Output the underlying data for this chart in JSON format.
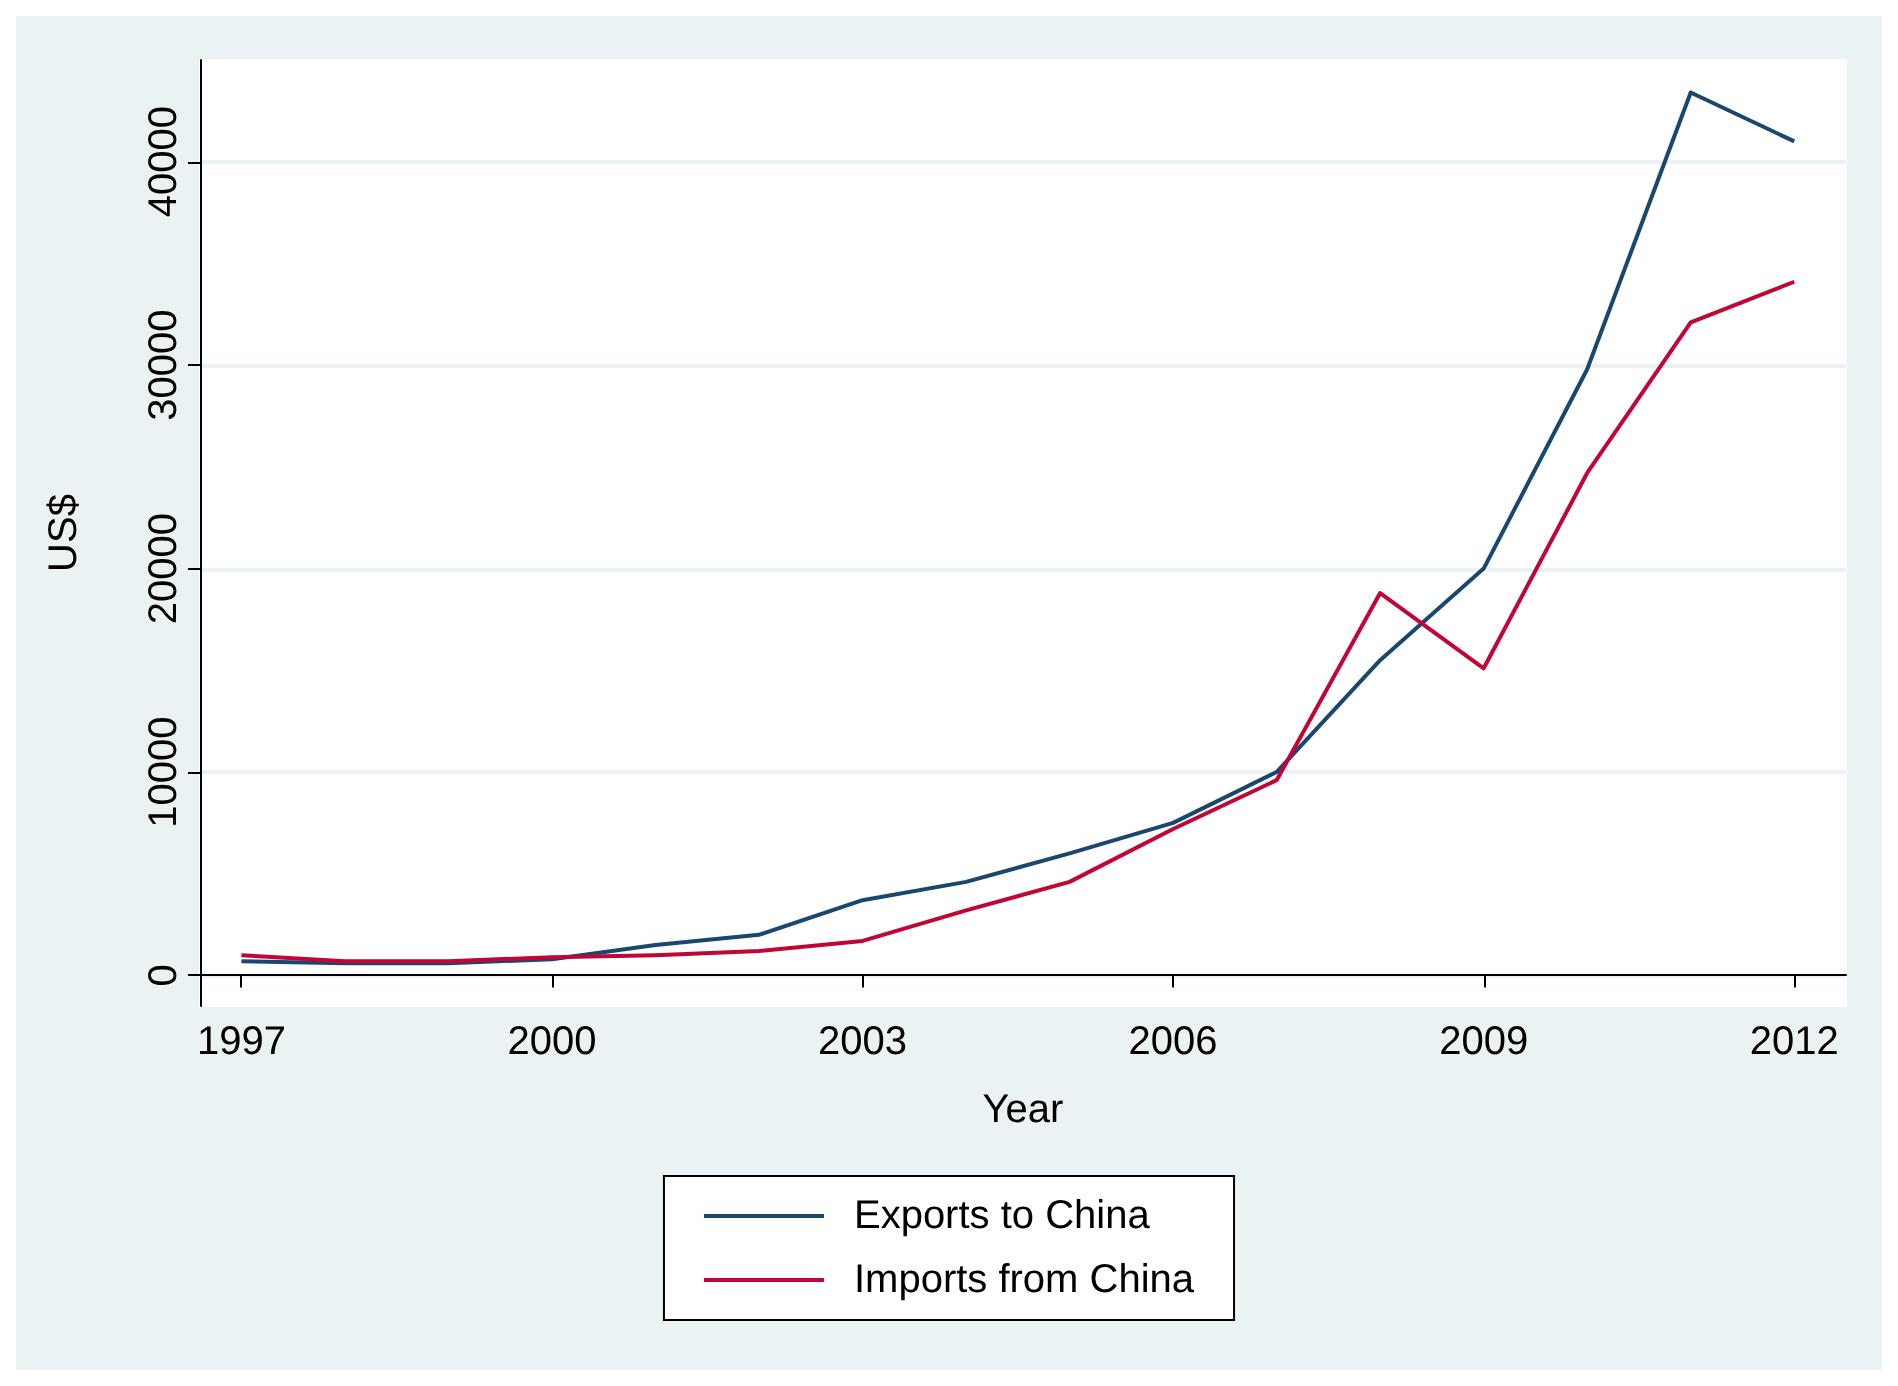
{
  "chart_data": {
    "type": "line",
    "xlabel": "Year",
    "ylabel": "US$",
    "x": [
      1997,
      1998,
      1999,
      2000,
      2001,
      2002,
      2003,
      2004,
      2005,
      2006,
      2007,
      2008,
      2009,
      2010,
      2011,
      2012
    ],
    "series": [
      {
        "name": "Exports to China",
        "color": "#1a476f",
        "values": [
          700,
          600,
          600,
          800,
          1500,
          2000,
          3700,
          4600,
          6000,
          7500,
          10000,
          15500,
          20000,
          29800,
          43400,
          41000
        ]
      },
      {
        "name": "Imports from China",
        "color": "#c10534",
        "values": [
          1000,
          700,
          700,
          900,
          1000,
          1200,
          1700,
          3200,
          4600,
          7200,
          9600,
          18800,
          15100,
          24700,
          32100,
          34100
        ]
      }
    ],
    "xlim": [
      1996.6,
      2012.5
    ],
    "xticks": [
      1997,
      2000,
      2003,
      2006,
      2009,
      2012
    ],
    "ylim": [
      -1500,
      45000
    ],
    "yticks": [
      0,
      10000,
      20000,
      30000,
      40000
    ],
    "grid": "y",
    "legend": "bottom",
    "marker": "none",
    "line_style": "solid"
  }
}
